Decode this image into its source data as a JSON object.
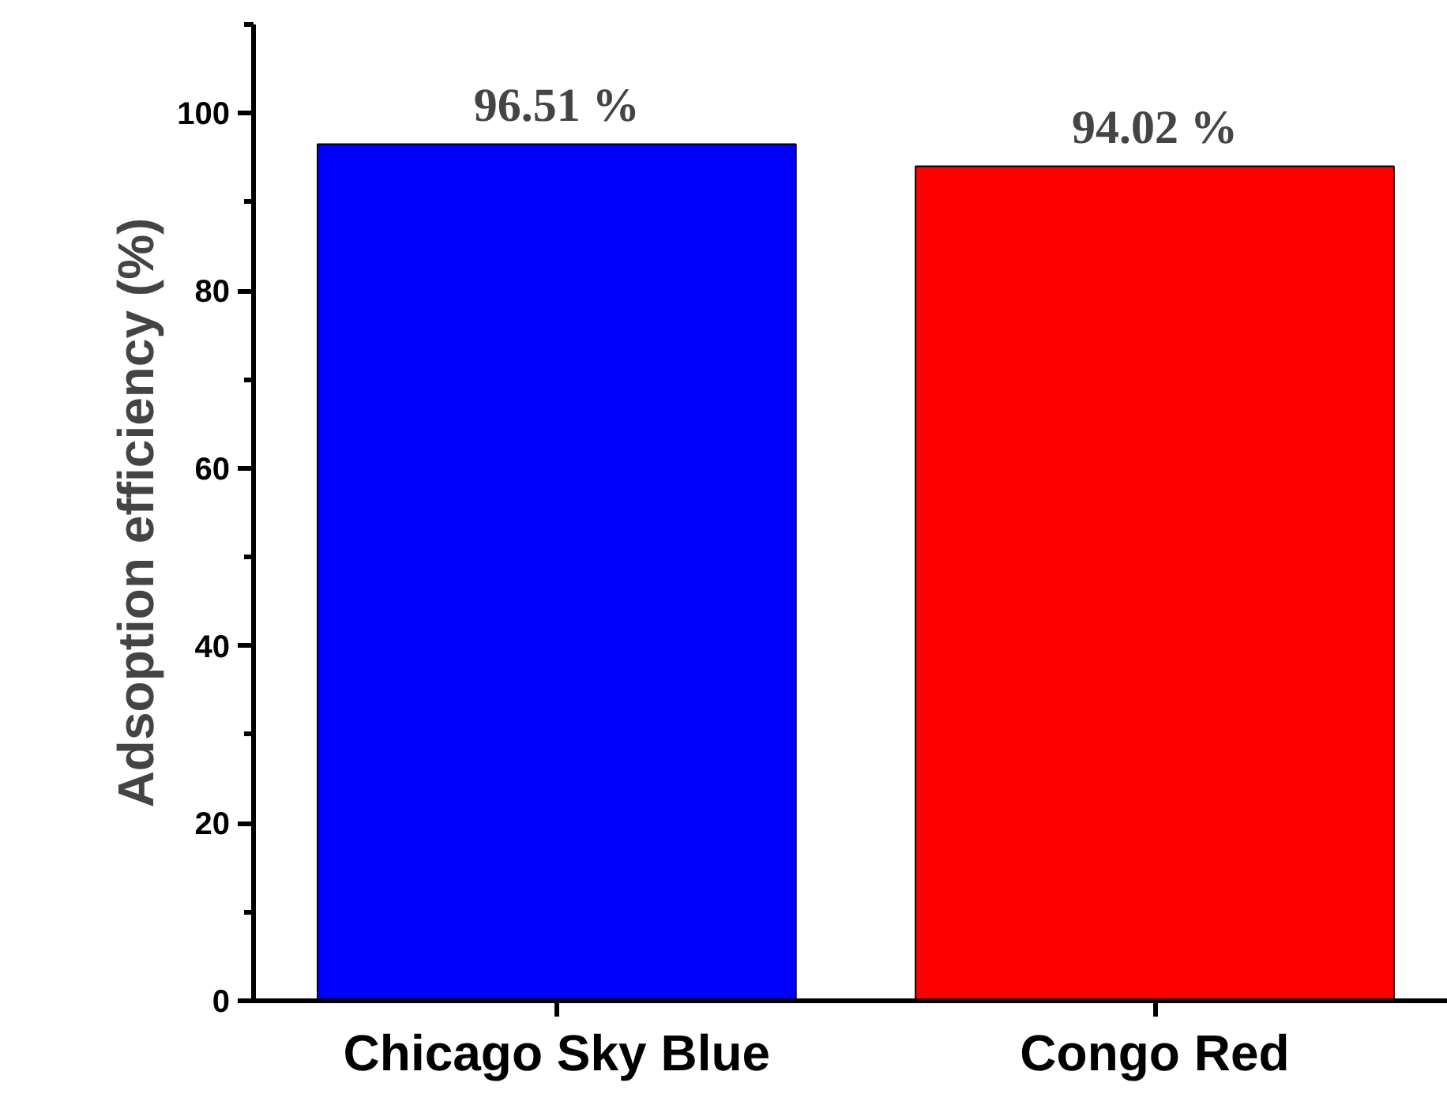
{
  "chart_data": {
    "type": "bar",
    "ylabel": "Adsoption efficiency (%)",
    "categories": [
      "Chicago Sky Blue",
      "Congo Red"
    ],
    "values": [
      96.51,
      94.02
    ],
    "colors": [
      "#0000ff",
      "#ff0000"
    ],
    "value_labels": [
      "96.51 %",
      "94.02 %"
    ],
    "ylim": [
      0,
      110
    ],
    "yticks": [
      0,
      20,
      40,
      60,
      80,
      100
    ],
    "grid": false
  }
}
